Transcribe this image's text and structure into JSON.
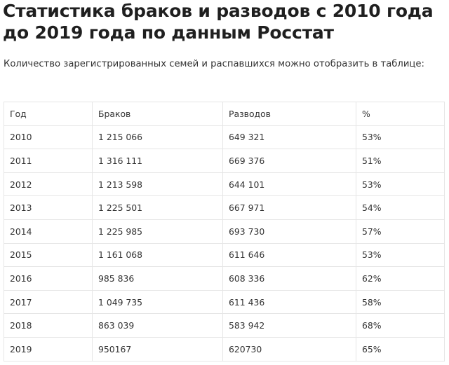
{
  "title": "Статистика браков и разводов с 2010 года до 2019 года по данным Росстат",
  "intro": "Количество зарегистрированных семей и распавшихся можно отобразить в таблице:",
  "table": {
    "headers": [
      "Год",
      "Браков",
      "Разводов",
      "%"
    ],
    "rows": [
      [
        "2010",
        "1 215 066",
        "649 321",
        "53%"
      ],
      [
        "2011",
        "1 316 111",
        "669 376",
        "51%"
      ],
      [
        "2012",
        "1 213 598",
        "644 101",
        "53%"
      ],
      [
        "2013",
        "1 225 501",
        "667 971",
        "54%"
      ],
      [
        "2014",
        "1 225 985",
        "693 730",
        "57%"
      ],
      [
        "2015",
        "1 161 068",
        "611 646",
        "53%"
      ],
      [
        "2016",
        "985 836",
        "608 336",
        "62%"
      ],
      [
        "2017",
        "1 049 735",
        "611 436",
        "58%"
      ],
      [
        "2018",
        "863 039",
        "583 942",
        "68%"
      ],
      [
        "2019",
        "950167",
        "620730",
        "65%"
      ]
    ]
  }
}
